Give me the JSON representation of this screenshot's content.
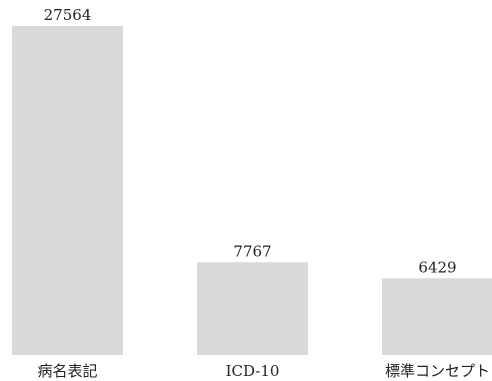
{
  "chart_data": {
    "type": "bar",
    "categories": [
      "病名表記",
      "ICD-10",
      "標準コンセプト"
    ],
    "values": [
      27564,
      7767,
      6429
    ],
    "title": "",
    "xlabel": "",
    "ylabel": "",
    "ylim": [
      0,
      27564
    ],
    "grid": false,
    "legend": "none",
    "data_labels": true,
    "bar_color": "#d9d9d9"
  }
}
